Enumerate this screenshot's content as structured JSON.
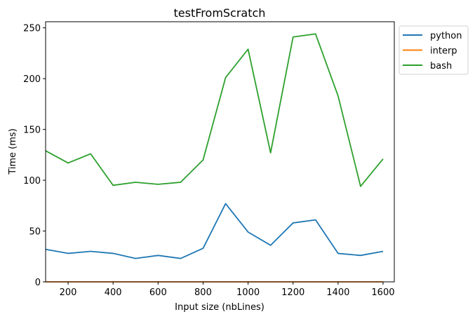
{
  "chart_data": {
    "type": "line",
    "title": "testFromScratch",
    "xlabel": "Input size (nbLines)",
    "ylabel": "Time (ms)",
    "x": [
      100,
      200,
      300,
      400,
      500,
      600,
      700,
      800,
      900,
      1000,
      1100,
      1200,
      1300,
      1400,
      1500,
      1600
    ],
    "xlim": [
      100,
      1650
    ],
    "ylim": [
      0,
      256
    ],
    "xticks": [
      200,
      400,
      600,
      800,
      1000,
      1200,
      1400,
      1600
    ],
    "yticks": [
      0,
      50,
      100,
      150,
      200,
      250
    ],
    "grid": false,
    "legend_position": "outside upper right",
    "series": [
      {
        "name": "python",
        "color": "#1f77b4",
        "values": [
          32,
          28,
          30,
          28,
          23,
          26,
          23,
          33,
          77,
          49,
          36,
          58,
          61,
          28,
          26,
          30
        ]
      },
      {
        "name": "interp",
        "color": "#ff7f0e",
        "values": [
          0,
          0,
          0,
          0,
          0,
          0,
          0,
          0,
          0,
          0,
          0,
          0,
          0,
          0,
          0,
          0
        ]
      },
      {
        "name": "bash",
        "color": "#2ca02c",
        "values": [
          129,
          117,
          126,
          95,
          98,
          96,
          98,
          120,
          201,
          229,
          127,
          241,
          244,
          183,
          94,
          121
        ]
      }
    ]
  }
}
